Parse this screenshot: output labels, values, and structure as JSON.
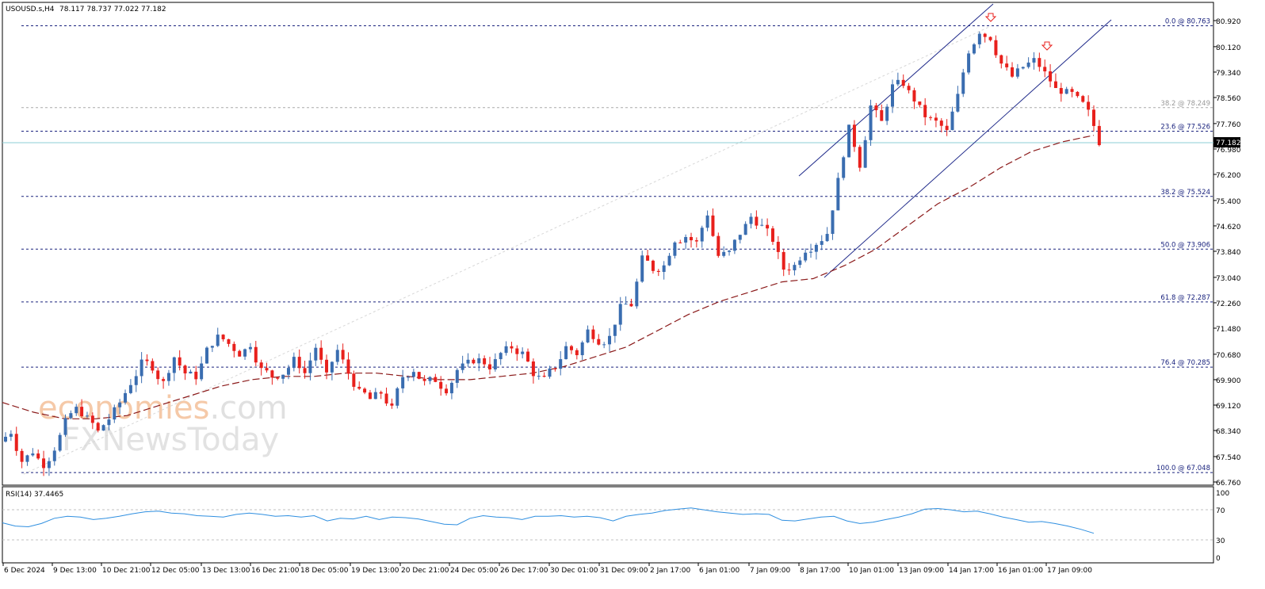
{
  "header": {
    "symbol": "USOUSD.s,H4",
    "ohlc": "78.117 78.737 77.022 77.182"
  },
  "watermark": {
    "line1_a": "economies",
    "line1_b": ".com",
    "line2_a": "FX",
    "line2_b": "NewsToday"
  },
  "rsi_panel": {
    "label": "RSI(14) 37.4465",
    "levels": [
      "100",
      "70",
      "30",
      "0"
    ]
  },
  "colors": {
    "bull": "#3a6db0",
    "bear": "#e8201c",
    "ma": "#8b1a1a",
    "channel": "#1f2a8a",
    "fib": "#1a237e",
    "rsi": "#2f8fe0",
    "price_line": "#8ecfd6"
  },
  "chart_data": {
    "type": "candlestick",
    "price_axis_ticks": [
      "80.920",
      "80.120",
      "79.340",
      "78.560",
      "77.760",
      "76.980",
      "76.200",
      "75.400",
      "74.620",
      "73.840",
      "73.040",
      "72.260",
      "71.480",
      "70.680",
      "69.900",
      "69.120",
      "68.340",
      "67.540",
      "66.760"
    ],
    "price_range": [
      66.76,
      80.92
    ],
    "last_price": "77.182",
    "fibonacci": [
      {
        "label": "0.0 @ 80.763",
        "value": 80.763
      },
      {
        "label": "38.2 @ 78.249",
        "value": 78.249
      },
      {
        "label": "23.6 @ 77.526",
        "value": 77.526
      },
      {
        "label": "38.2 @ 75.524",
        "value": 75.524
      },
      {
        "label": "50.0 @ 73.906",
        "value": 73.906
      },
      {
        "label": "61.8 @ 72.287",
        "value": 72.287
      },
      {
        "label": "76.4 @ 70.285",
        "value": 70.285
      },
      {
        "label": "100.0 @ 67.048",
        "value": 67.048
      }
    ],
    "x_axis_labels": [
      "6 Dec 2024",
      "9 Dec 13:00",
      "10 Dec 21:00",
      "12 Dec 05:00",
      "13 Dec 13:00",
      "16 Dec 21:00",
      "18 Dec 05:00",
      "19 Dec 13:00",
      "20 Dec 21:00",
      "24 Dec 05:00",
      "26 Dec 17:00",
      "30 Dec 01:00",
      "31 Dec 09:00",
      "2 Jan 17:00",
      "6 Jan 01:00",
      "7 Jan 09:00",
      "8 Jan 17:00",
      "10 Jan 01:00",
      "13 Jan 09:00",
      "14 Jan 17:00",
      "16 Jan 01:00",
      "17 Jan 09:00"
    ],
    "close_path": [
      68.3,
      67.4,
      67.7,
      67.3,
      67.8,
      68.6,
      69.0,
      68.7,
      68.3,
      68.7,
      69.2,
      69.8,
      70.4,
      70.3,
      69.8,
      70.6,
      70.1,
      70.0,
      70.8,
      71.2,
      71.0,
      70.7,
      71.0,
      70.2,
      70.0,
      70.1,
      70.5,
      70.1,
      70.9,
      70.0,
      70.8,
      70.1,
      69.5,
      69.3,
      69.5,
      69.0,
      70.0,
      70.2,
      69.8,
      69.9,
      69.6,
      70.2,
      70.4,
      70.5,
      70.3,
      70.7,
      70.9,
      70.7,
      70.1,
      69.9,
      70.3,
      70.9,
      70.7,
      71.4,
      71.1,
      71.2,
      72.1,
      72.2,
      73.6,
      73.3,
      73.4,
      74.2,
      74.3,
      74.1,
      75.0,
      73.7,
      73.8,
      74.4,
      74.9,
      74.6,
      74.2,
      73.3,
      73.4,
      73.9,
      74.1,
      74.4,
      76.0,
      77.6,
      76.5,
      78.3,
      77.8,
      78.9,
      79.0,
      78.5,
      78.0,
      77.8,
      77.5,
      78.6,
      80.0,
      80.6,
      80.4,
      79.6,
      79.2,
      79.5,
      79.7,
      79.3,
      78.8,
      78.7,
      78.5,
      78.1,
      77.2
    ],
    "ma_path": [
      69.2,
      68.9,
      68.7,
      68.7,
      68.8,
      69.1,
      69.4,
      69.7,
      69.9,
      70.0,
      70.0,
      70.1,
      70.1,
      70.0,
      69.9,
      69.9,
      70.0,
      70.1,
      70.3,
      70.6,
      70.9,
      71.4,
      71.9,
      72.3,
      72.6,
      72.9,
      73.0,
      73.4,
      73.9,
      74.6,
      75.3,
      75.8,
      76.4,
      76.9,
      77.2,
      77.4
    ],
    "rsi_range": [
      0,
      100
    ],
    "rsi_values": [
      53,
      48,
      47,
      52,
      60,
      63,
      62,
      58,
      60,
      63,
      67,
      70,
      71,
      68,
      67,
      64,
      63,
      62,
      66,
      68,
      66,
      63,
      64,
      62,
      64,
      56,
      60,
      59,
      63,
      58,
      62,
      61,
      59,
      55,
      51,
      50,
      60,
      64,
      62,
      61,
      58,
      63,
      63,
      64,
      62,
      63,
      61,
      56,
      63,
      66,
      68,
      72,
      74,
      76,
      73,
      70,
      68,
      66,
      67,
      66,
      57,
      56,
      59,
      62,
      63,
      56,
      52,
      54,
      58,
      62,
      67,
      74,
      75,
      73,
      70,
      71,
      67,
      62,
      58,
      54,
      55,
      52,
      48,
      43,
      37
    ]
  }
}
